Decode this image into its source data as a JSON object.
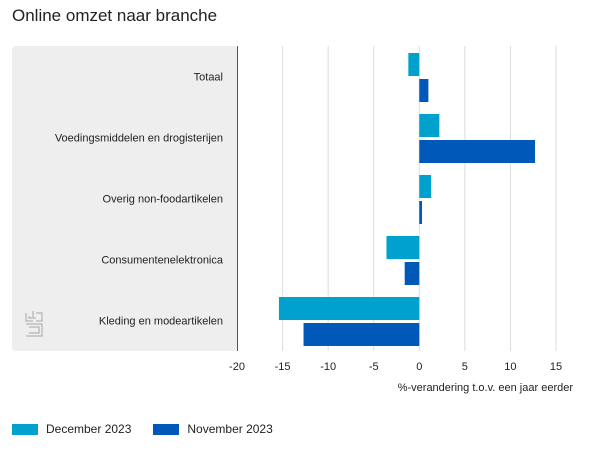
{
  "title": "Online omzet naar branche",
  "chart_data": {
    "type": "bar",
    "orientation": "horizontal",
    "title": "Online omzet naar branche",
    "xlabel": "%-verandering t.o.v. een jaar eerder",
    "ylabel": "",
    "xlim": [
      -20,
      15
    ],
    "xticks": [
      -20,
      -15,
      -10,
      -5,
      0,
      5,
      10,
      15
    ],
    "categories": [
      "Totaal",
      "Voedingsmiddelen en drogisterijen",
      "Overig non-foodartikelen",
      "Consumentenelektronica",
      "Kleding en modeartikelen"
    ],
    "series": [
      {
        "name": "December 2023",
        "color": "#00A1CD",
        "values": [
          -1.2,
          2.2,
          1.3,
          -3.6,
          -15.4
        ]
      },
      {
        "name": "November 2023",
        "color": "#0058B8",
        "values": [
          1.0,
          12.7,
          0.3,
          -1.6,
          -12.7
        ]
      }
    ],
    "grid": true,
    "legend": "bottom-left"
  },
  "logo": {
    "name": "cbs-logo-icon"
  }
}
